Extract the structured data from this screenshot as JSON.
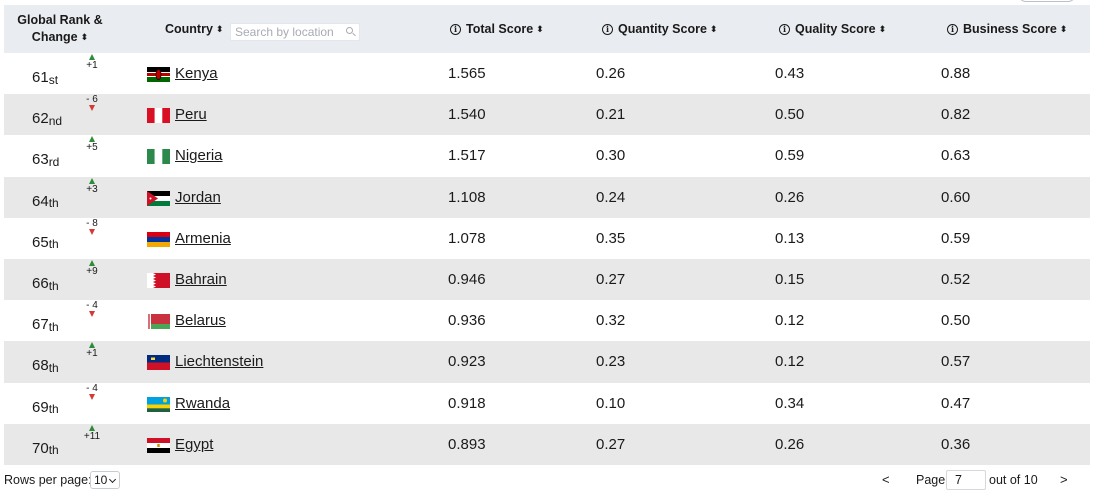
{
  "header": {
    "rank_line1": "Global Rank &",
    "rank_line2": "Change",
    "country": "Country",
    "search_placeholder": "Search by location",
    "total": "Total Score",
    "quantity": "Quantity Score",
    "quality": "Quality Score",
    "business": "Business Score"
  },
  "rows": [
    {
      "rank": "61",
      "suffix": "st",
      "change": "+1",
      "dir": "up",
      "country": "Kenya",
      "flag": "kenya-flag-icon",
      "total": "1.565",
      "quantity": "0.26",
      "quality": "0.43",
      "business": "0.88"
    },
    {
      "rank": "62",
      "suffix": "nd",
      "change": "- 6",
      "dir": "down",
      "country": "Peru",
      "flag": "peru-flag-icon",
      "total": "1.540",
      "quantity": "0.21",
      "quality": "0.50",
      "business": "0.82"
    },
    {
      "rank": "63",
      "suffix": "rd",
      "change": "+5",
      "dir": "up",
      "country": "Nigeria",
      "flag": "nigeria-flag-icon",
      "total": "1.517",
      "quantity": "0.30",
      "quality": "0.59",
      "business": "0.63"
    },
    {
      "rank": "64",
      "suffix": "th",
      "change": "+3",
      "dir": "up",
      "country": "Jordan",
      "flag": "jordan-flag-icon",
      "total": "1.108",
      "quantity": "0.24",
      "quality": "0.26",
      "business": "0.60"
    },
    {
      "rank": "65",
      "suffix": "th",
      "change": "- 8",
      "dir": "down",
      "country": "Armenia",
      "flag": "armenia-flag-icon",
      "total": "1.078",
      "quantity": "0.35",
      "quality": "0.13",
      "business": "0.59"
    },
    {
      "rank": "66",
      "suffix": "th",
      "change": "+9",
      "dir": "up",
      "country": "Bahrain",
      "flag": "bahrain-flag-icon",
      "total": "0.946",
      "quantity": "0.27",
      "quality": "0.15",
      "business": "0.52"
    },
    {
      "rank": "67",
      "suffix": "th",
      "change": "- 4",
      "dir": "down",
      "country": "Belarus",
      "flag": "belarus-flag-icon",
      "total": "0.936",
      "quantity": "0.32",
      "quality": "0.12",
      "business": "0.50"
    },
    {
      "rank": "68",
      "suffix": "th",
      "change": "+1",
      "dir": "up",
      "country": "Liechtenstein",
      "flag": "liechtenstein-flag-icon",
      "total": "0.923",
      "quantity": "0.23",
      "quality": "0.12",
      "business": "0.57"
    },
    {
      "rank": "69",
      "suffix": "th",
      "change": "- 4",
      "dir": "down",
      "country": "Rwanda",
      "flag": "rwanda-flag-icon",
      "total": "0.918",
      "quantity": "0.10",
      "quality": "0.34",
      "business": "0.47"
    },
    {
      "rank": "70",
      "suffix": "th",
      "change": "+11",
      "dir": "up",
      "country": "Egypt",
      "flag": "egypt-flag-icon",
      "total": "0.893",
      "quantity": "0.27",
      "quality": "0.26",
      "business": "0.36"
    }
  ],
  "footer": {
    "rows_per_page_label": "Rows per page:",
    "rows_per_page_value": "10",
    "prev": "<",
    "page_label": "Page",
    "page_value": "7",
    "out_of": "out of 10",
    "next": ">"
  },
  "colors": {
    "header_bg": "#e9ecf0",
    "alt_row_bg": "#e8e8e8",
    "up": "#2e8b3a",
    "down": "#d33a33"
  }
}
